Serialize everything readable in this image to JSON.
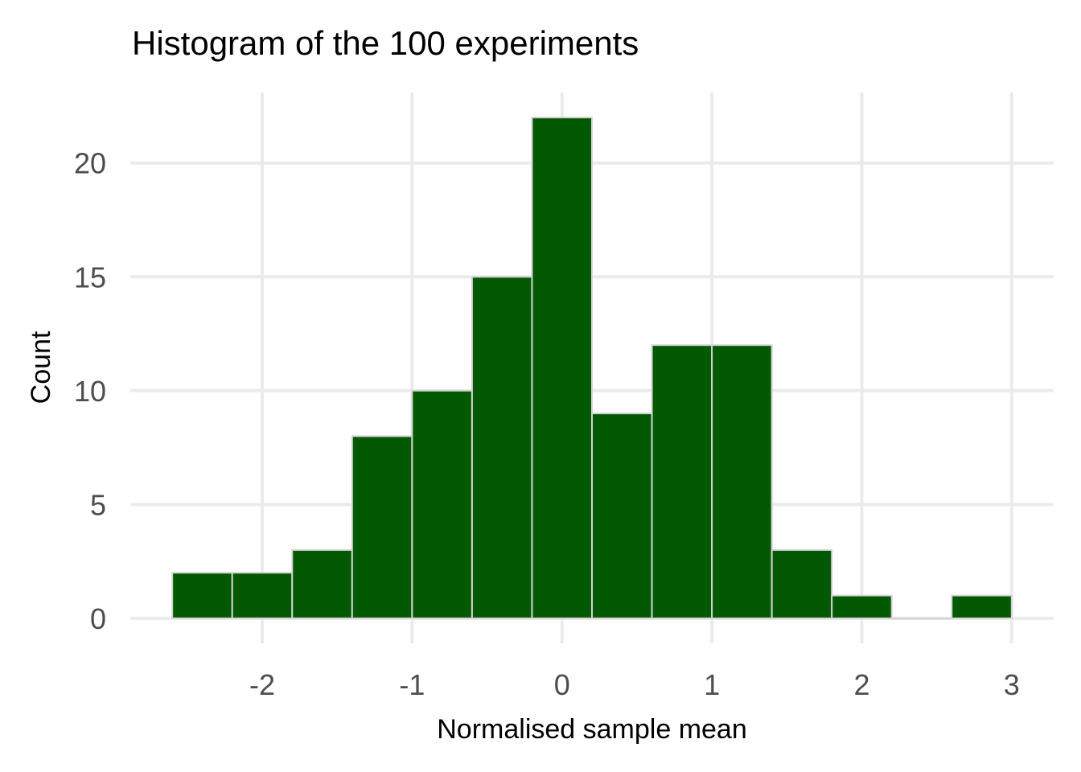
{
  "chart_data": {
    "type": "bar",
    "title": "Histogram of the 100 experiments",
    "xlabel": "Normalised sample mean",
    "ylabel": "Count",
    "bin_width": 0.4,
    "bins": [
      {
        "x0": -2.6,
        "x1": -2.2,
        "count": 2
      },
      {
        "x0": -2.2,
        "x1": -1.8,
        "count": 2
      },
      {
        "x0": -1.8,
        "x1": -1.4,
        "count": 3
      },
      {
        "x0": -1.4,
        "x1": -1.0,
        "count": 8
      },
      {
        "x0": -1.0,
        "x1": -0.6,
        "count": 10
      },
      {
        "x0": -0.6,
        "x1": -0.2,
        "count": 15
      },
      {
        "x0": -0.2,
        "x1": 0.2,
        "count": 22
      },
      {
        "x0": 0.2,
        "x1": 0.6,
        "count": 9
      },
      {
        "x0": 0.6,
        "x1": 1.0,
        "count": 12
      },
      {
        "x0": 1.0,
        "x1": 1.4,
        "count": 12
      },
      {
        "x0": 1.4,
        "x1": 1.8,
        "count": 3
      },
      {
        "x0": 1.8,
        "x1": 2.2,
        "count": 1
      },
      {
        "x0": 2.2,
        "x1": 2.6,
        "count": 0
      },
      {
        "x0": 2.6,
        "x1": 3.0,
        "count": 1
      }
    ],
    "xlim": [
      -2.88,
      3.28
    ],
    "ylim": [
      -1.1,
      23.1
    ],
    "x_ticks": [
      -2,
      -1,
      0,
      1,
      2,
      3
    ],
    "x_tick_labels": [
      "-2",
      "-1",
      "0",
      "1",
      "2",
      "3"
    ],
    "y_ticks": [
      0,
      5,
      10,
      15,
      20
    ],
    "y_tick_labels": [
      "0",
      "5",
      "10",
      "15",
      "20"
    ],
    "grid": true,
    "legend": "none",
    "colors": {
      "bar_fill": "#025902",
      "bar_outline": "#d3d3d3",
      "grid": "#ebebeb",
      "tick_text": "#4d4d4d",
      "title_text": "#000000"
    }
  }
}
